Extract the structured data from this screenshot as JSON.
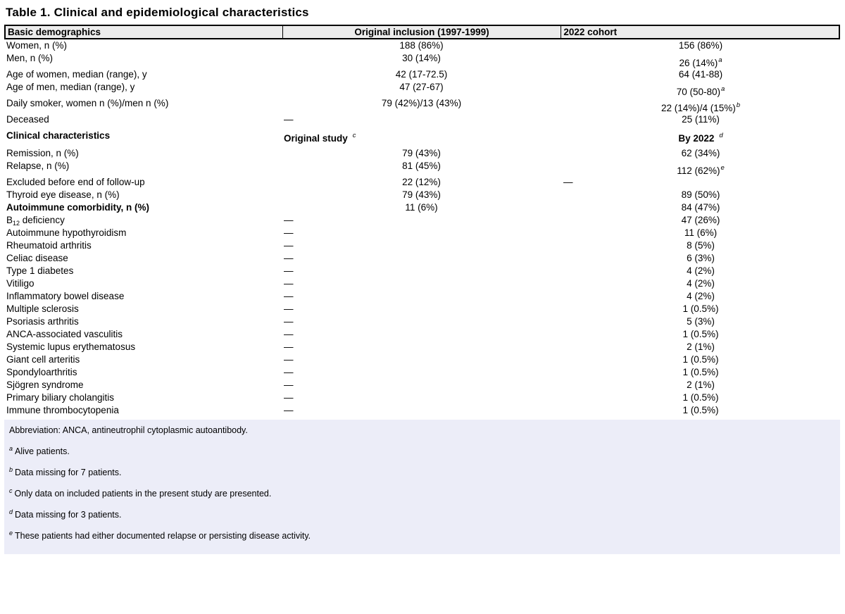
{
  "title": "Table 1. Clinical and epidemiological characteristics",
  "table": {
    "header": [
      "Basic demographics",
      "Original inclusion (1997-1999)",
      "2022 cohort"
    ],
    "demographics_rows": [
      {
        "label": "Women, n (%)",
        "c1": "188 (86%)",
        "c2": "156 (86%)"
      },
      {
        "label": "Men, n (%)",
        "c1": "30 (14%)",
        "c2": "26 (14%)",
        "c2_sup": "a"
      },
      {
        "label": "Age of women, median (range), y",
        "c1": "42 (17-72.5)",
        "c2": "64 (41-88)",
        "gap": true
      },
      {
        "label": "Age of men, median (range), y",
        "c1": "47 (27-67)",
        "c2": "70 (50-80)",
        "c2_sup": "a"
      },
      {
        "label": "Daily smoker, women n (%)/men n (%)",
        "c1": "79 (42%)/13 (43%)",
        "c2": "22 (14%)/4 (15%)",
        "c2_sup": "b",
        "gap": true
      },
      {
        "label": "Deceased",
        "c1": "—",
        "c1_dash": true,
        "c2": "25 (11%)",
        "gap": true
      }
    ],
    "section": {
      "label": "Clinical characteristics",
      "col2_label": "Original study",
      "col2_sup": "c",
      "col3_label": "By 2022",
      "col3_sup": "d"
    },
    "clinical_rows": [
      {
        "label": "Remission, n (%)",
        "c1": "79 (43%)",
        "c2": "62 (34%)",
        "gap": true
      },
      {
        "label": "Relapse, n (%)",
        "c1": "81 (45%)",
        "c2": "112 (62%)",
        "c2_sup": "e"
      },
      {
        "label": "Excluded before end of follow-up",
        "c1": "22 (12%)",
        "c2": "—",
        "c2_dash": true,
        "gap": true
      },
      {
        "label": "Thyroid eye disease, n (%)",
        "c1": "79 (43%)",
        "c2": "89 (50%)"
      },
      {
        "label": "Autoimmune comorbidity, n (%)",
        "bold": true,
        "c1": "11 (6%)",
        "c2": "84 (47%)"
      },
      {
        "label": "B",
        "label_sub": "12",
        "label_post": " deficiency",
        "c1": "—",
        "c1_dash": true,
        "c2": "47 (26%)"
      },
      {
        "label": "Autoimmune hypothyroidism",
        "c1": "—",
        "c1_dash": true,
        "c2": "11 (6%)"
      },
      {
        "label": "Rheumatoid arthritis",
        "c1": "—",
        "c1_dash": true,
        "c2": "8 (5%)"
      },
      {
        "label": "Celiac disease",
        "c1": "—",
        "c1_dash": true,
        "c2": "6 (3%)"
      },
      {
        "label": "Type 1 diabetes",
        "c1": "—",
        "c1_dash": true,
        "c2": "4 (2%)"
      },
      {
        "label": "Vitiligo",
        "c1": "—",
        "c1_dash": true,
        "c2": "4 (2%)"
      },
      {
        "label": "Inflammatory bowel disease",
        "c1": "—",
        "c1_dash": true,
        "c2": "4 (2%)"
      },
      {
        "label": "Multiple sclerosis",
        "c1": "—",
        "c1_dash": true,
        "c2": "1 (0.5%)"
      },
      {
        "label": "Psoriasis arthritis",
        "c1": "—",
        "c1_dash": true,
        "c2": "5 (3%)"
      },
      {
        "label": "ANCA-associated vasculitis",
        "c1": "—",
        "c1_dash": true,
        "c2": "1 (0.5%)"
      },
      {
        "label": "Systemic lupus erythematosus",
        "c1": "—",
        "c1_dash": true,
        "c2": "2 (1%)"
      },
      {
        "label": "Giant cell arteritis",
        "c1": "—",
        "c1_dash": true,
        "c2": "1 (0.5%)"
      },
      {
        "label": "Spondyloarthritis",
        "c1": "—",
        "c1_dash": true,
        "c2": "1 (0.5%)"
      },
      {
        "label": "Sjögren syndrome",
        "c1": "—",
        "c1_dash": true,
        "c2": "2 (1%)"
      },
      {
        "label": "Primary biliary cholangitis",
        "c1": "—",
        "c1_dash": true,
        "c2": "1 (0.5%)"
      },
      {
        "label": "Immune thrombocytopenia",
        "c1": "—",
        "c1_dash": true,
        "c2": "1 (0.5%)"
      }
    ]
  },
  "footnotes": [
    {
      "sup": "",
      "text": "Abbreviation: ANCA, antineutrophil cytoplasmic autoantibody."
    },
    {
      "sup": "a",
      "text": "Alive patients."
    },
    {
      "sup": "b",
      "text": "Data missing for 7 patients."
    },
    {
      "sup": "c",
      "text": "Only data on included patients in the present study are presented."
    },
    {
      "sup": "d",
      "text": "Data missing for 3 patients."
    },
    {
      "sup": "e",
      "text": "These patients had either documented relapse or persisting disease activity."
    }
  ],
  "colors": {
    "header_bg": "#ececec",
    "footnote_bg": "#ecedf8",
    "border": "#000000"
  }
}
